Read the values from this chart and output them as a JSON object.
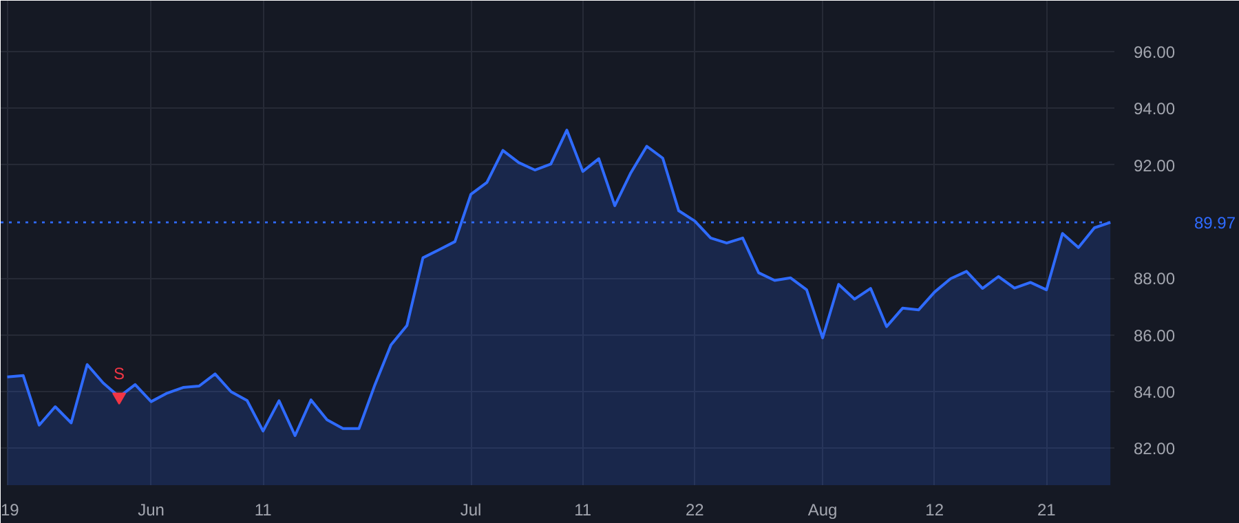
{
  "chart_data": {
    "type": "area",
    "categories": [
      "19",
      null,
      null,
      null,
      null,
      null,
      null,
      null,
      null,
      "Jun",
      null,
      null,
      null,
      null,
      null,
      null,
      "11",
      null,
      null,
      null,
      null,
      null,
      null,
      null,
      null,
      null,
      null,
      null,
      null,
      "Jul",
      null,
      null,
      null,
      null,
      null,
      null,
      "11",
      null,
      null,
      null,
      null,
      null,
      null,
      "22",
      null,
      null,
      null,
      null,
      null,
      null,
      null,
      "Aug",
      null,
      null,
      null,
      null,
      null,
      null,
      "12",
      null,
      null,
      null,
      null,
      null,
      null,
      "21",
      null,
      null,
      null,
      null
    ],
    "series": [
      {
        "color": "#2f6bff",
        "values": [
          84.51,
          84.56,
          82.81,
          83.46,
          82.89,
          84.95,
          84.3,
          83.81,
          84.24,
          83.64,
          83.94,
          84.14,
          84.19,
          84.62,
          83.99,
          83.68,
          82.6,
          83.67,
          82.44,
          83.7,
          83.0,
          82.69,
          82.69,
          84.24,
          85.64,
          86.33,
          88.72,
          89.0,
          89.29,
          90.96,
          91.38,
          92.51,
          92.08,
          91.82,
          92.03,
          93.23,
          91.77,
          92.22,
          90.56,
          91.72,
          92.66,
          92.24,
          90.38,
          90.02,
          89.42,
          89.24,
          89.42,
          88.19,
          87.92,
          88.01,
          87.59,
          85.89,
          87.78,
          87.26,
          87.64,
          86.29,
          86.94,
          86.88,
          87.51,
          87.98,
          88.24,
          87.64,
          88.06,
          87.65,
          87.85,
          87.59,
          89.58,
          89.08,
          89.78,
          89.97
        ]
      }
    ],
    "ylim": [
      80.69,
      97.8
    ],
    "yticks": [
      {
        "value": 82,
        "label": "82.00"
      },
      {
        "value": 84,
        "label": "84.00"
      },
      {
        "value": 86,
        "label": "86.00"
      },
      {
        "value": 88,
        "label": "88.00"
      },
      {
        "value": 92,
        "label": "92.00"
      },
      {
        "value": 94,
        "label": "94.00"
      },
      {
        "value": 96,
        "label": "96.00"
      }
    ],
    "ref_lines": [
      {
        "axis": "y",
        "value": 89.97,
        "label": "89.97",
        "color": "#2f6bff",
        "line_style": "dotted"
      }
    ],
    "annotations": [
      {
        "text": "S",
        "y": 83.81
      }
    ],
    "grid": true
  }
}
